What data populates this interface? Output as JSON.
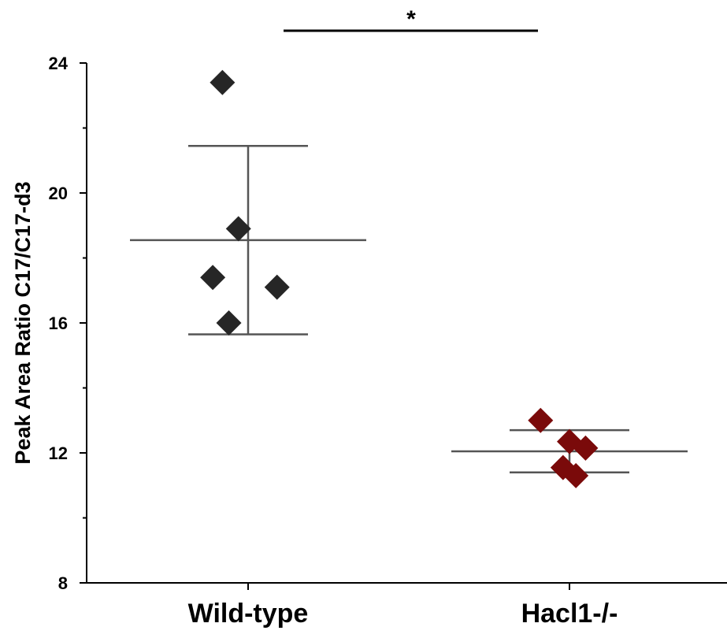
{
  "chart_data": {
    "type": "scatter",
    "title": "",
    "xlabel": "",
    "ylabel": "Peak Area Ratio C17/C17-d3",
    "ylim": [
      8,
      24
    ],
    "yticks": [
      8,
      12,
      16,
      20,
      24
    ],
    "categories": [
      "Wild-type",
      "Hacl1-/-"
    ],
    "series": [
      {
        "category": "Wild-type",
        "color": "#262626",
        "marker": "diamond",
        "points": [
          {
            "jitter": -0.08,
            "value": 23.4
          },
          {
            "jitter": -0.03,
            "value": 18.9
          },
          {
            "jitter": -0.11,
            "value": 17.4
          },
          {
            "jitter": 0.09,
            "value": 17.1
          },
          {
            "jitter": -0.06,
            "value": 16.0
          }
        ],
        "mean": 18.55,
        "sd_upper": 21.45,
        "sd_lower": 15.65
      },
      {
        "category": "Hacl1-/-",
        "color": "#7a0a0a",
        "marker": "diamond",
        "points": [
          {
            "jitter": -0.09,
            "value": 13.0
          },
          {
            "jitter": 0.0,
            "value": 12.35
          },
          {
            "jitter": 0.05,
            "value": 12.15
          },
          {
            "jitter": -0.02,
            "value": 11.55
          },
          {
            "jitter": 0.02,
            "value": 11.3
          }
        ],
        "mean": 12.05,
        "sd_upper": 12.7,
        "sd_lower": 11.4
      }
    ],
    "significance": {
      "label": "*",
      "between": [
        "Wild-type",
        "Hacl1-/-"
      ]
    },
    "colors": {
      "axis": "#000000",
      "error_bar": "#555555"
    }
  }
}
